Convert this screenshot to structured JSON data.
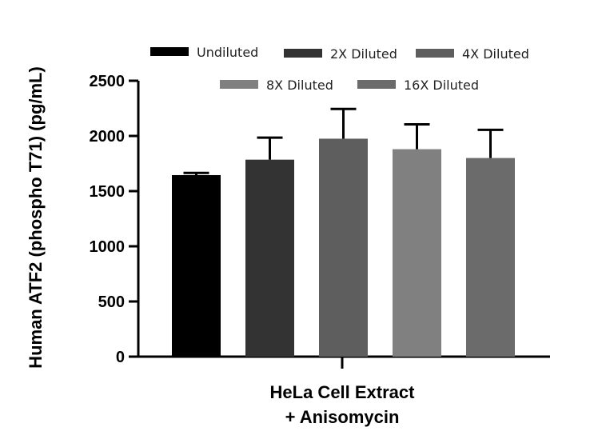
{
  "chart_data": {
    "type": "bar",
    "title": "",
    "ylabel": "Human ATF2  (phospho T71) (pg/mL)",
    "xlabel_lines": [
      "HeLa Cell Extract",
      "+ Anisomycin"
    ],
    "ylim": [
      0,
      2500
    ],
    "yticks": [
      "0",
      "500",
      "1000",
      "1500",
      "2000",
      "2500"
    ],
    "ytick_values": [
      0,
      500,
      1000,
      1500,
      2000,
      2500
    ],
    "grid": false,
    "legend_position": "top",
    "series": [
      {
        "name": "Undiluted",
        "value": 1645,
        "error": 20,
        "color": "#000000"
      },
      {
        "name": "2X Diluted",
        "value": 1785,
        "error": 200,
        "color": "#333333"
      },
      {
        "name": "4X Diluted",
        "value": 1975,
        "error": 270,
        "color": "#5e5e5e"
      },
      {
        "name": "8X Diluted",
        "value": 1880,
        "error": 225,
        "color": "#808080"
      },
      {
        "name": "16X Diluted",
        "value": 1800,
        "error": 255,
        "color": "#6b6b6b"
      }
    ]
  }
}
